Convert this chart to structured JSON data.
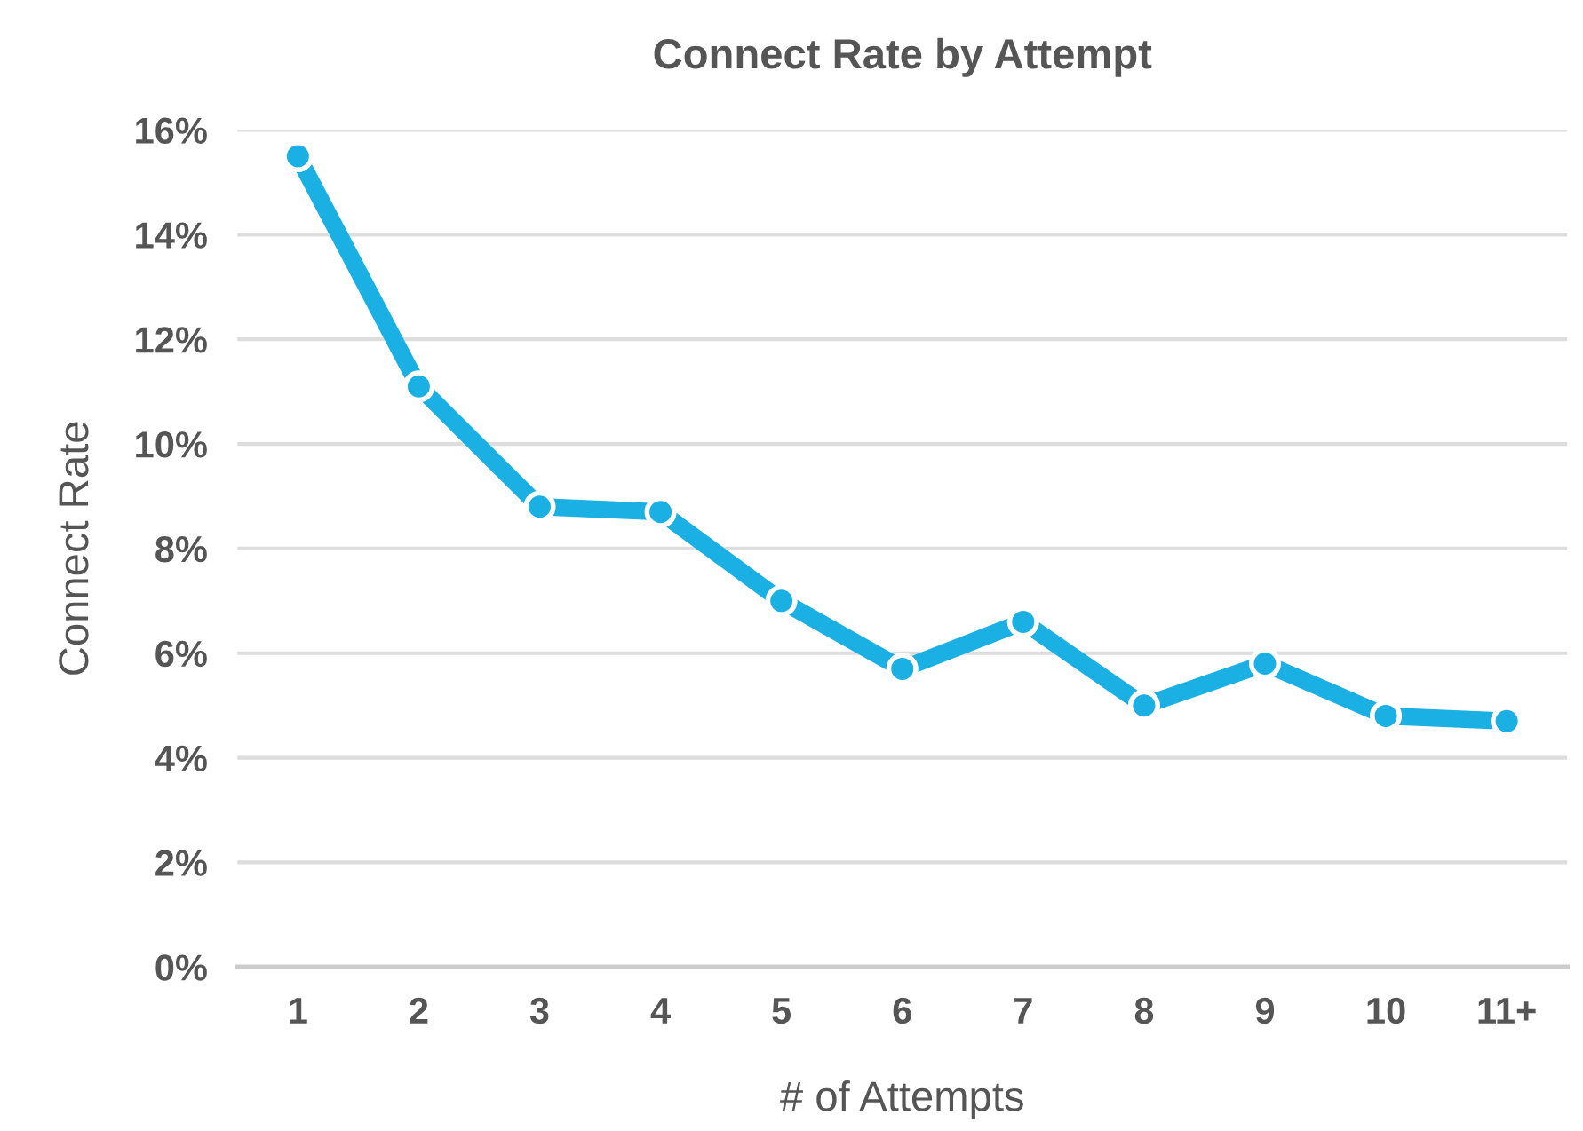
{
  "chart_data": {
    "type": "line",
    "title": "Connect Rate by Attempt",
    "xlabel": "# of Attempts",
    "ylabel": "Connect Rate",
    "categories": [
      "1",
      "2",
      "3",
      "4",
      "5",
      "6",
      "7",
      "8",
      "9",
      "10",
      "11+"
    ],
    "series": [
      {
        "color": "#1ab0e3",
        "values": [
          15.5,
          11.1,
          8.8,
          8.7,
          7.0,
          5.7,
          6.6,
          5.0,
          5.8,
          4.8,
          4.7
        ]
      }
    ],
    "ylim": [
      0,
      16
    ],
    "yticks": [
      {
        "value": 0,
        "label": "0%"
      },
      {
        "value": 2,
        "label": "2%"
      },
      {
        "value": 4,
        "label": "4%"
      },
      {
        "value": 6,
        "label": "6%"
      },
      {
        "value": 8,
        "label": "8%"
      },
      {
        "value": 10,
        "label": "10%"
      },
      {
        "value": 12,
        "label": "12%"
      },
      {
        "value": 14,
        "label": "14%"
      },
      {
        "value": 16,
        "label": "16%"
      }
    ],
    "grid": "y",
    "marker": "circle",
    "line_style": "solid"
  }
}
